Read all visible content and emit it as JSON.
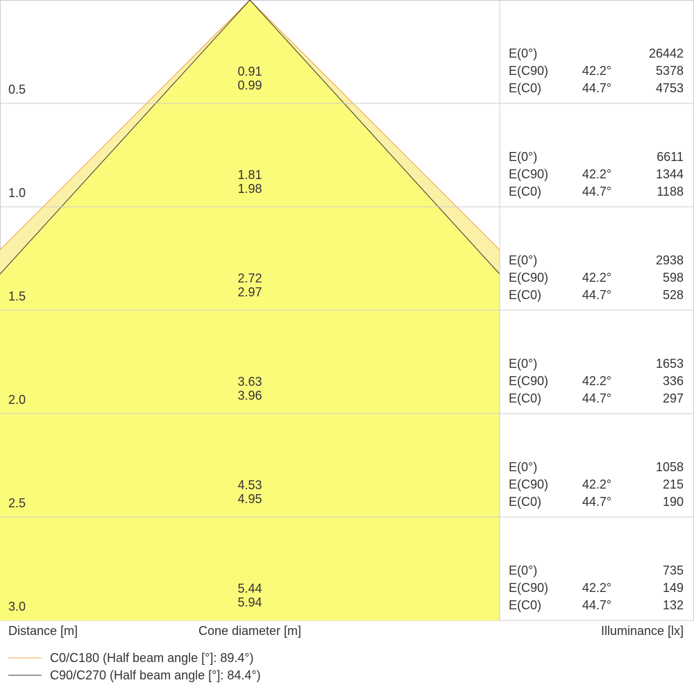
{
  "rows": [
    {
      "distance": "0.5",
      "diameters": [
        "0.91",
        "0.99"
      ],
      "illuminance": [
        {
          "label": "E(0°)",
          "value": "26442"
        },
        {
          "label": "E(C90)",
          "angle": "42.2°",
          "value": "5378"
        },
        {
          "label": "E(C0)",
          "angle": "44.7°",
          "value": "4753"
        }
      ]
    },
    {
      "distance": "1.0",
      "diameters": [
        "1.81",
        "1.98"
      ],
      "illuminance": [
        {
          "label": "E(0°)",
          "value": "6611"
        },
        {
          "label": "E(C90)",
          "angle": "42.2°",
          "value": "1344"
        },
        {
          "label": "E(C0)",
          "angle": "44.7°",
          "value": "1188"
        }
      ]
    },
    {
      "distance": "1.5",
      "diameters": [
        "2.72",
        "2.97"
      ],
      "illuminance": [
        {
          "label": "E(0°)",
          "value": "2938"
        },
        {
          "label": "E(C90)",
          "angle": "42.2°",
          "value": "598"
        },
        {
          "label": "E(C0)",
          "angle": "44.7°",
          "value": "528"
        }
      ]
    },
    {
      "distance": "2.0",
      "diameters": [
        "3.63",
        "3.96"
      ],
      "illuminance": [
        {
          "label": "E(0°)",
          "value": "1653"
        },
        {
          "label": "E(C90)",
          "angle": "42.2°",
          "value": "336"
        },
        {
          "label": "E(C0)",
          "angle": "44.7°",
          "value": "297"
        }
      ]
    },
    {
      "distance": "2.5",
      "diameters": [
        "4.53",
        "4.95"
      ],
      "illuminance": [
        {
          "label": "E(0°)",
          "value": "1058"
        },
        {
          "label": "E(C90)",
          "angle": "42.2°",
          "value": "215"
        },
        {
          "label": "E(C0)",
          "angle": "44.7°",
          "value": "190"
        }
      ]
    },
    {
      "distance": "3.0",
      "diameters": [
        "5.44",
        "5.94"
      ],
      "illuminance": [
        {
          "label": "E(0°)",
          "value": "735"
        },
        {
          "label": "E(C90)",
          "angle": "42.2°",
          "value": "149"
        },
        {
          "label": "E(C0)",
          "angle": "44.7°",
          "value": "132"
        }
      ]
    }
  ],
  "labels": {
    "distance": "Distance [m]",
    "cone": "Cone diameter [m]",
    "illuminance": "Illuminance [lx]"
  },
  "legend": [
    {
      "label": "C0/C180 (Half beam angle [°]: 89.4°)",
      "color": "#f5a04a"
    },
    {
      "label": "C90/C270 (Half beam angle [°]: 84.4°)",
      "color": "#333333"
    }
  ]
}
